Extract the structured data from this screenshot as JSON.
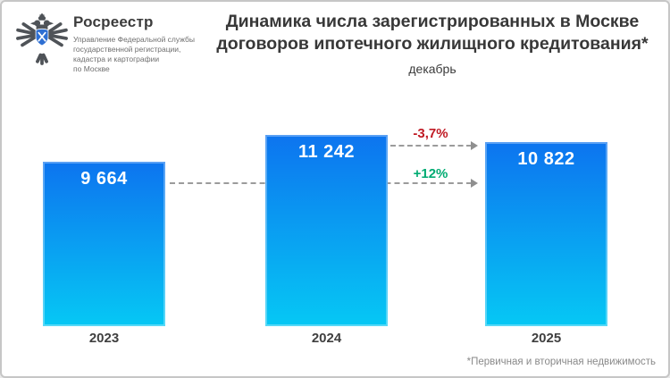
{
  "header": {
    "org_name": "Росреестр",
    "org_sub": [
      "Управление Федеральной службы",
      "государственной регистрации,",
      "кадастра и картографии",
      "по Москве"
    ],
    "title_line1": "Динамика числа зарегистрированных в Москве",
    "title_line2": "договоров ипотечного жилищного кредитования*",
    "subtitle": "декабрь"
  },
  "chart_data": {
    "type": "bar",
    "categories": [
      "2023",
      "2024",
      "2025"
    ],
    "values": [
      9664,
      11242,
      10822
    ],
    "value_labels": [
      "9 664",
      "11 242",
      "10 822"
    ],
    "title": "Динамика числа зарегистрированных в Москве договоров ипотечного жилищного кредитования*",
    "subtitle": "декабрь",
    "ylim": [
      0,
      12000
    ],
    "grid": false,
    "legend": "none",
    "annotations": [
      {
        "text": "-3,7%",
        "color": "#c01a24",
        "from": "2024",
        "to": "2025"
      },
      {
        "text": "+12%",
        "color": "#00ab72",
        "from": "2023",
        "to": "2025"
      }
    ],
    "bar_gradient_top": "#0d74ef",
    "bar_gradient_bottom": "#06c8f4"
  },
  "footnote": "*Первичная и вторичная недвижимость",
  "colors": {
    "negative": "#c01a24",
    "positive": "#00ab72",
    "eagle": "#4f5358",
    "shield_blue": "#2e6fd2"
  }
}
